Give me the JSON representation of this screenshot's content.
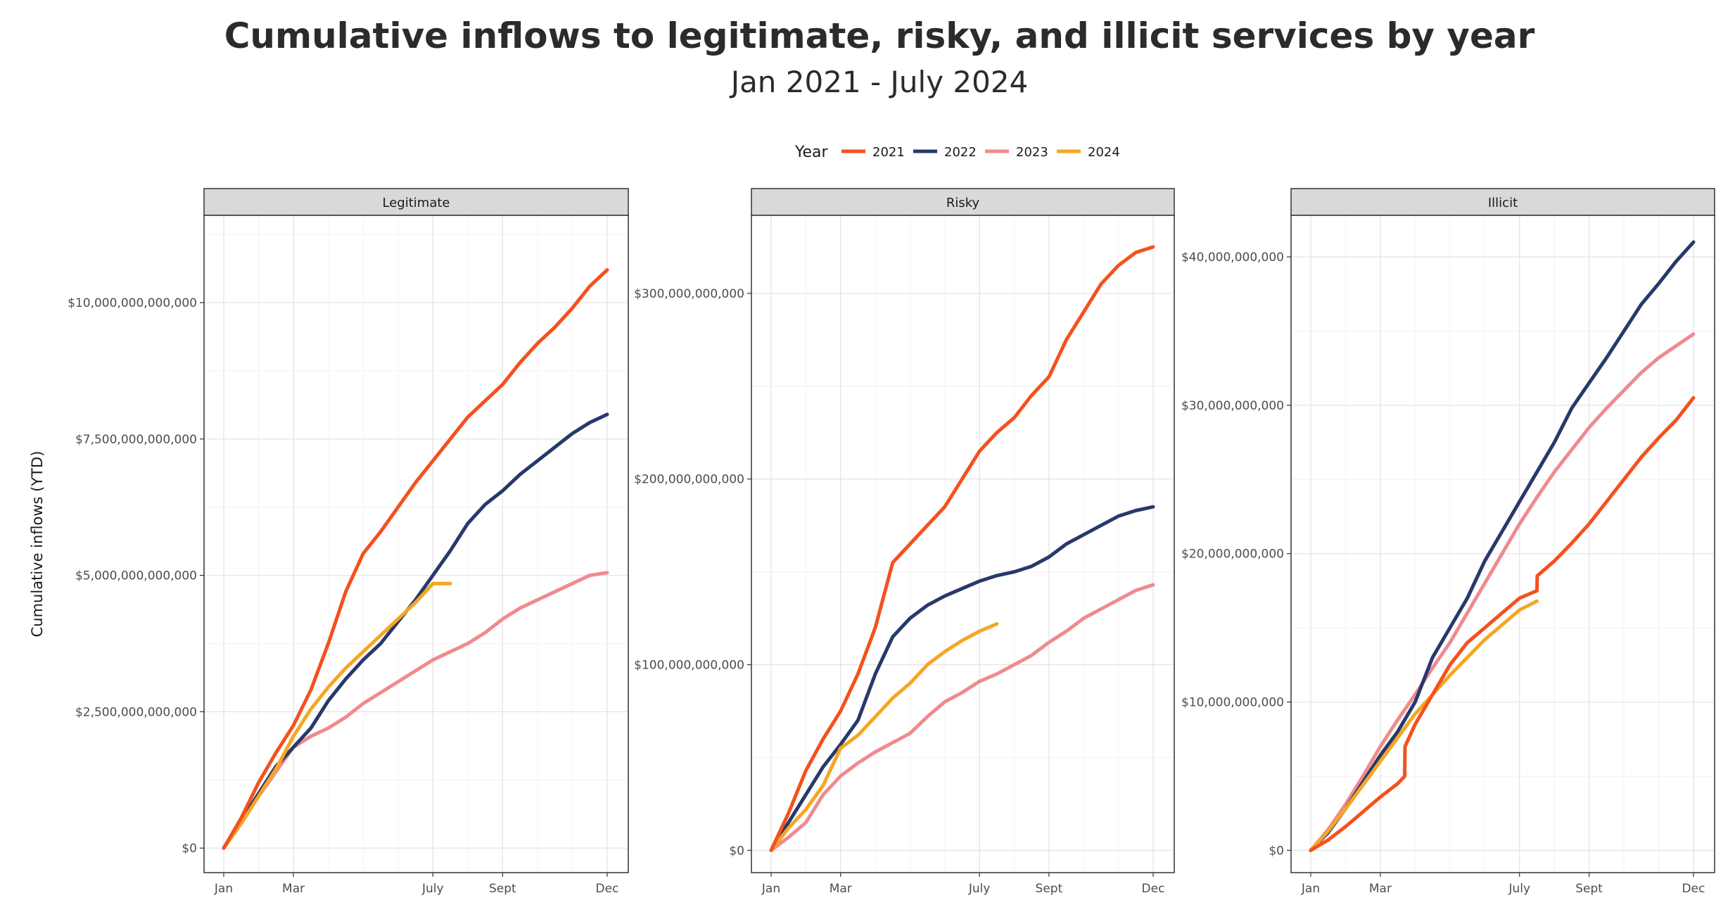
{
  "title": "Cumulative inflows to legitimate, risky, and illicit services by year",
  "subtitle": "Jan 2021 - July 2024",
  "chart_data": {
    "type": "line",
    "ylabel": "Cumulative inflows (YTD)",
    "legend": {
      "title": "Year",
      "position": "top",
      "entries": [
        {
          "name": "2021",
          "color": "#F4511E"
        },
        {
          "name": "2022",
          "color": "#27396B"
        },
        {
          "name": "2023",
          "color": "#EF8A8F"
        },
        {
          "name": "2024",
          "color": "#F5A623"
        }
      ]
    },
    "x_ticks": [
      "Jan",
      "Mar",
      "July",
      "Sept",
      "Dec"
    ],
    "x_tick_months": [
      0,
      2,
      6,
      8,
      11
    ],
    "x_range": [
      0,
      11
    ],
    "panels": [
      {
        "name": "Legitimate",
        "ylim": [
          -450000000000,
          11600000000000
        ],
        "y_ticks": [
          0,
          2500000000000,
          5000000000000,
          7500000000000,
          10000000000000
        ],
        "y_tick_labels": [
          "$0",
          "$2,500,000,000,000",
          "$5,000,000,000,000",
          "$7,500,000,000,000",
          "$10,000,000,000,000"
        ],
        "series": [
          {
            "name": "2021",
            "x": [
              0,
              0.5,
              1,
              1.5,
              2,
              2.5,
              3,
              3.5,
              4,
              4.5,
              5,
              5.5,
              6,
              6.5,
              7,
              7.5,
              8,
              8.5,
              9,
              9.5,
              10,
              10.5,
              11
            ],
            "values": [
              0.0,
              0.55,
              1.2,
              1.75,
              2.25,
              2.9,
              3.75,
              4.7,
              5.4,
              5.8,
              6.25,
              6.7,
              7.1,
              7.5,
              7.9,
              8.2,
              8.5,
              8.9,
              9.25,
              9.55,
              9.9,
              10.3,
              10.6
            ]
          },
          {
            "name": "2022",
            "x": [
              0,
              0.5,
              1,
              1.5,
              2,
              2.5,
              3,
              3.5,
              4,
              4.5,
              5,
              5.5,
              6,
              6.5,
              7,
              7.5,
              8,
              8.5,
              9,
              9.5,
              10,
              10.5,
              11
            ],
            "values": [
              0.0,
              0.5,
              1.0,
              1.5,
              1.85,
              2.2,
              2.7,
              3.1,
              3.45,
              3.75,
              4.15,
              4.55,
              5.0,
              5.45,
              5.95,
              6.3,
              6.55,
              6.85,
              7.1,
              7.35,
              7.6,
              7.8,
              7.95
            ]
          },
          {
            "name": "2023",
            "x": [
              0,
              0.5,
              1,
              1.5,
              2,
              2.5,
              3,
              3.5,
              4,
              4.5,
              5,
              5.5,
              6,
              6.5,
              7,
              7.5,
              8,
              8.5,
              9,
              9.5,
              10,
              10.5,
              11
            ],
            "values": [
              0.0,
              0.45,
              0.95,
              1.4,
              1.85,
              2.05,
              2.2,
              2.4,
              2.65,
              2.85,
              3.05,
              3.25,
              3.45,
              3.6,
              3.75,
              3.95,
              4.2,
              4.4,
              4.55,
              4.7,
              4.85,
              5.0,
              5.05
            ]
          },
          {
            "name": "2024",
            "x": [
              0,
              0.5,
              1,
              1.5,
              2,
              2.5,
              3,
              3.5,
              4,
              4.5,
              5,
              5.5,
              6,
              6.5
            ],
            "values": [
              0.0,
              0.45,
              0.95,
              1.45,
              2.05,
              2.55,
              2.95,
              3.3,
              3.6,
              3.9,
              4.2,
              4.5,
              4.85,
              4.85
            ]
          }
        ],
        "value_scale": 1000000000000
      },
      {
        "name": "Risky",
        "ylim": [
          -12000000000,
          342000000000
        ],
        "y_ticks": [
          0,
          100000000000,
          200000000000,
          300000000000
        ],
        "y_tick_labels": [
          "$0",
          "$100,000,000,000",
          "$200,000,000,000",
          "$300,000,000,000"
        ],
        "series": [
          {
            "name": "2021",
            "x": [
              0,
              0.5,
              1,
              1.5,
              2,
              2.5,
              3,
              3.5,
              4,
              4.5,
              5,
              5.5,
              6,
              6.5,
              7,
              7.5,
              8,
              8.5,
              9,
              9.5,
              10,
              10.5,
              11
            ],
            "values": [
              0,
              20,
              43,
              60,
              75,
              95,
              120,
              155,
              165,
              175,
              185,
              200,
              215,
              225,
              233,
              245,
              255,
              275,
              290,
              305,
              315,
              322,
              325
            ]
          },
          {
            "name": "2022",
            "x": [
              0,
              0.5,
              1,
              1.5,
              2,
              2.5,
              3,
              3.5,
              4,
              4.5,
              5,
              5.5,
              6,
              6.5,
              7,
              7.5,
              8,
              8.5,
              9,
              9.5,
              10,
              10.5,
              11
            ],
            "values": [
              0,
              15,
              30,
              45,
              57,
              70,
              95,
              115,
              125,
              132,
              137,
              141,
              145,
              148,
              150,
              153,
              158,
              165,
              170,
              175,
              180,
              183,
              185
            ]
          },
          {
            "name": "2023",
            "x": [
              0,
              0.5,
              1,
              1.5,
              2,
              2.5,
              3,
              3.5,
              4,
              4.5,
              5,
              5.5,
              6,
              6.5,
              7,
              7.5,
              8,
              8.5,
              9,
              9.5,
              10,
              10.5,
              11
            ],
            "values": [
              0,
              7,
              15,
              30,
              40,
              47,
              53,
              58,
              63,
              72,
              80,
              85,
              91,
              95,
              100,
              105,
              112,
              118,
              125,
              130,
              135,
              140,
              143
            ]
          },
          {
            "name": "2024",
            "x": [
              0,
              0.5,
              1,
              1.5,
              2,
              2.5,
              3,
              3.5,
              4,
              4.5,
              5,
              5.5,
              6,
              6.5
            ],
            "values": [
              0,
              12,
              22,
              35,
              55,
              62,
              72,
              82,
              90,
              100,
              107,
              113,
              118,
              122
            ]
          }
        ],
        "value_scale": 1000000000
      },
      {
        "name": "Illicit",
        "ylim": [
          -1500000000,
          42800000000
        ],
        "y_ticks": [
          0,
          10000000000,
          20000000000,
          30000000000,
          40000000000
        ],
        "y_tick_labels": [
          "$0",
          "$10,000,000,000",
          "$20,000,000,000",
          "$30,000,000,000",
          "$40,000,000,000"
        ],
        "series": [
          {
            "name": "2021",
            "x": [
              0,
              0.5,
              1,
              1.5,
              2,
              2.5,
              2.7,
              2.71,
              3,
              3.5,
              4,
              4.5,
              5,
              5.5,
              6,
              6.5,
              6.51,
              7,
              7.5,
              8,
              8.5,
              9,
              9.5,
              10,
              10.5,
              11
            ],
            "values": [
              0,
              0.7,
              1.6,
              2.6,
              3.6,
              4.5,
              5.0,
              7.0,
              8.5,
              10.5,
              12.5,
              14.0,
              15.0,
              16.0,
              17.0,
              17.5,
              18.5,
              19.5,
              20.7,
              22.0,
              23.5,
              25.0,
              26.5,
              27.8,
              29.0,
              30.5
            ]
          },
          {
            "name": "2022",
            "x": [
              0,
              0.5,
              1,
              1.5,
              2,
              2.5,
              3,
              3.5,
              4,
              4.5,
              5,
              5.5,
              6,
              6.5,
              7,
              7.5,
              8,
              8.5,
              9,
              9.5,
              10,
              10.5,
              11
            ],
            "values": [
              0,
              1.2,
              2.8,
              4.6,
              6.4,
              8.0,
              10.0,
              13.0,
              15.0,
              17.0,
              19.5,
              21.5,
              23.5,
              25.5,
              27.5,
              29.8,
              31.5,
              33.2,
              35.0,
              36.8,
              38.2,
              39.7,
              41.0
            ]
          },
          {
            "name": "2023",
            "x": [
              0,
              0.5,
              1,
              1.5,
              2,
              2.5,
              3,
              3.5,
              4,
              4.5,
              5,
              5.5,
              6,
              6.5,
              7,
              7.5,
              8,
              8.5,
              9,
              9.5,
              10,
              10.5,
              11
            ],
            "values": [
              0,
              1.4,
              3.1,
              5.0,
              7.0,
              8.8,
              10.5,
              12.3,
              14.0,
              16.0,
              18.0,
              20.0,
              22.0,
              23.8,
              25.5,
              27.0,
              28.5,
              29.8,
              31.0,
              32.2,
              33.2,
              34.0,
              34.8
            ]
          },
          {
            "name": "2024",
            "x": [
              0,
              0.5,
              1,
              1.5,
              2,
              2.5,
              3,
              3.5,
              4,
              4.5,
              5,
              5.5,
              6,
              6.5
            ],
            "values": [
              0,
              1.3,
              2.8,
              4.4,
              6.0,
              7.6,
              9.2,
              10.5,
              11.8,
              13.0,
              14.2,
              15.2,
              16.2,
              16.8
            ]
          }
        ],
        "value_scale": 1000000000
      }
    ]
  }
}
